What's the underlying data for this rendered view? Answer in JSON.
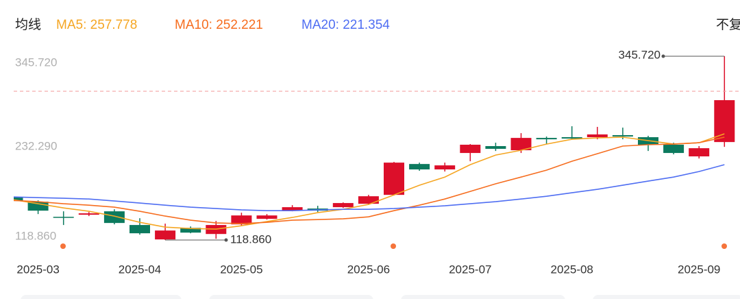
{
  "chart_data": {
    "type": "candlestick",
    "legend_title": "均线",
    "mode_label": "不复",
    "categories": [
      null,
      "2025-03",
      null,
      null,
      null,
      "2025-04",
      null,
      null,
      null,
      "2025-05",
      null,
      null,
      null,
      null,
      "2025-06",
      null,
      null,
      null,
      "2025-07",
      null,
      null,
      null,
      "2025-08",
      null,
      null,
      null,
      null,
      "2025-09",
      null
    ],
    "candles": {
      "up_color": "#dc0f2a",
      "down_color": "#0c7a5e",
      "open": [
        172.1,
        166.2,
        147.5,
        150.1,
        154.3,
        137.4,
        119.6,
        133.9,
        126.3,
        138.2,
        145.0,
        155.1,
        157.7,
        159.4,
        163.6,
        174.6,
        212.7,
        206.0,
        226.3,
        234.8,
        229.7,
        244.9,
        245.8,
        245.8,
        248.3,
        245.8,
        236.5,
        222.1,
        239.8
      ],
      "high": [
        174.6,
        167.8,
        154.3,
        153.4,
        156.8,
        145.8,
        139.1,
        135.6,
        142.4,
        152.6,
        150.9,
        161.9,
        161.1,
        165.3,
        174.6,
        215.3,
        214.4,
        214.4,
        237.3,
        239.0,
        250.8,
        246.6,
        259.3,
        258.5,
        257.6,
        247.5,
        239.0,
        234.8,
        345.72
      ],
      "low": [
        164.5,
        150.9,
        137.4,
        148.4,
        138.2,
        125.5,
        118.86,
        127.2,
        120.4,
        136.5,
        144.1,
        154.3,
        153.4,
        158.5,
        162.8,
        173.8,
        204.3,
        203.4,
        216.1,
        228.8,
        226.3,
        237.3,
        243.2,
        243.2,
        243.2,
        228.8,
        224.6,
        219.5,
        233.9
      ],
      "close": [
        167.0,
        155.1,
        146.6,
        151.8,
        139.9,
        127.2,
        130.6,
        128.0,
        137.4,
        149.2,
        149.2,
        159.4,
        155.1,
        164.5,
        172.9,
        214.4,
        206.0,
        211.0,
        236.5,
        231.4,
        244.9,
        243.2,
        244.1,
        249.2,
        246.6,
        236.5,
        226.3,
        232.2,
        291.5
      ]
    },
    "series": [
      {
        "name": "MA5: 257.778",
        "color": "#f5a623",
        "values": [
          168.7,
          163.6,
          158.5,
          154.3,
          148.4,
          140.7,
          134.8,
          133.1,
          132.3,
          136.5,
          141.6,
          146.7,
          152.6,
          156.8,
          162.8,
          174.6,
          186.5,
          196.6,
          211.9,
          223.7,
          229.7,
          237.3,
          243.2,
          244.9,
          245.8,
          241.5,
          237.3,
          239.0,
          250.0
        ]
      },
      {
        "name": "MA10: 252.221",
        "color": "#f66d1f",
        "values": [
          167.8,
          166.2,
          163.6,
          161.9,
          159.4,
          154.3,
          148.4,
          143.3,
          139.9,
          139.1,
          140.7,
          143.3,
          144.1,
          145.0,
          147.5,
          155.1,
          161.9,
          169.5,
          178.9,
          188.3,
          196.6,
          205.1,
          216.1,
          225.4,
          234.8,
          236.5,
          237.3,
          239.0,
          245.8
        ]
      },
      {
        "name": "MA20: 221.354",
        "color": "#4f6ef2",
        "values": [
          172.1,
          171.2,
          170.4,
          169.5,
          167.0,
          164.5,
          161.9,
          159.4,
          157.7,
          156.0,
          155.1,
          155.1,
          156.0,
          156.8,
          156.8,
          157.7,
          159.4,
          161.1,
          163.6,
          166.2,
          169.5,
          172.9,
          177.2,
          181.4,
          186.5,
          191.6,
          196.6,
          203.4,
          211.9
        ]
      }
    ],
    "ylim": [
      118.86,
      345.72
    ],
    "yticks": [
      {
        "value": 345.72,
        "label": "345.720"
      },
      {
        "value": 232.29,
        "label": "232.290"
      },
      {
        "value": 118.86,
        "label": "118.860"
      }
    ],
    "reference_line": 302.5,
    "max_annotation": "345.720",
    "min_annotation": "118.860"
  }
}
